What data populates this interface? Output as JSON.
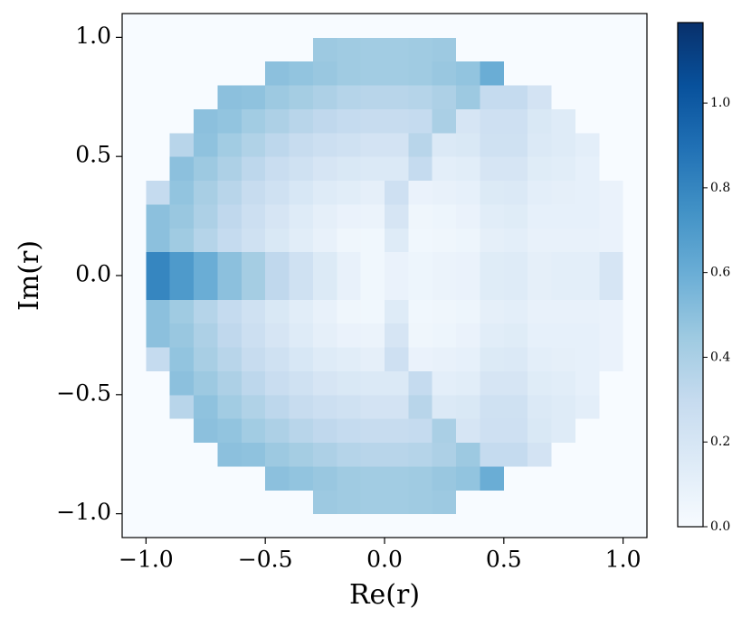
{
  "chart_data": {
    "type": "heatmap",
    "x_label": "Re(r)",
    "y_label": "Im(r)",
    "xlim": [
      -1.1,
      1.1
    ],
    "ylim": [
      -1.1,
      1.1
    ],
    "xticks": [
      {
        "value": -1,
        "label": "−1.0"
      },
      {
        "value": -0.5,
        "label": "−0.5"
      },
      {
        "value": 0,
        "label": "0.0"
      },
      {
        "value": 0.5,
        "label": "0.5"
      },
      {
        "value": 1,
        "label": "1.0"
      }
    ],
    "yticks": [
      {
        "value": -1,
        "label": "−1.0"
      },
      {
        "value": -0.5,
        "label": "−0.5"
      },
      {
        "value": 0,
        "label": "0.0"
      },
      {
        "value": 0.5,
        "label": "0.5"
      },
      {
        "value": 1,
        "label": "1.0"
      }
    ],
    "clim": [
      0,
      1.19
    ],
    "cticks": [
      {
        "value": 0,
        "label": "0.0"
      },
      0.2,
      0.4,
      0.6,
      0.8,
      {
        "value": 1,
        "label": "1.0"
      }
    ],
    "colormap": [
      "#f7fbff",
      "#deebf7",
      "#c6dbef",
      "#9ecae1",
      "#6baed6",
      "#4292c6",
      "#2171b5",
      "#08519c",
      "#08306b"
    ],
    "xbins": [
      -1.1,
      -1.0,
      -0.9,
      -0.8,
      -0.7,
      -0.6,
      -0.5,
      -0.4,
      -0.3,
      -0.2,
      -0.1,
      0,
      0.1,
      0.2,
      0.3,
      0.4,
      0.5,
      0.6,
      0.7,
      0.8,
      0.9,
      1.0,
      1.1
    ],
    "ybins": [
      -1.1,
      -1.0,
      -0.9,
      -0.8,
      -0.7,
      -0.6,
      -0.5,
      -0.4,
      -0.3,
      -0.2,
      -0.1,
      0,
      0.1,
      0.2,
      0.3,
      0.4,
      0.5,
      0.6,
      0.7,
      0.8,
      0.9,
      1.0,
      1.1
    ],
    "z": [
      [
        0,
        0,
        0,
        0,
        0,
        0,
        0,
        0,
        0,
        0,
        0,
        0,
        0,
        0,
        0,
        0,
        0,
        0,
        0,
        0,
        0,
        0
      ],
      [
        0,
        0,
        0,
        0,
        0,
        0,
        0,
        0,
        0.45,
        0.44,
        0.43,
        0.43,
        0.44,
        0.45,
        0,
        0,
        0,
        0,
        0,
        0,
        0,
        0
      ],
      [
        0,
        0,
        0,
        0,
        0,
        0,
        0.5,
        0.48,
        0.46,
        0.44,
        0.43,
        0.43,
        0.44,
        0.46,
        0.48,
        0.6,
        0,
        0,
        0,
        0,
        0,
        0
      ],
      [
        0,
        0,
        0,
        0,
        0.5,
        0.49,
        0.45,
        0.42,
        0.39,
        0.36,
        0.35,
        0.35,
        0.36,
        0.39,
        0.45,
        0.3,
        0.3,
        0.22,
        0,
        0,
        0,
        0
      ],
      [
        0,
        0,
        0,
        0.5,
        0.48,
        0.43,
        0.39,
        0.35,
        0.32,
        0.3,
        0.29,
        0.29,
        0.3,
        0.4,
        0.2,
        0.25,
        0.25,
        0.18,
        0.15,
        0,
        0,
        0
      ],
      [
        0,
        0,
        0.35,
        0.49,
        0.43,
        0.38,
        0.33,
        0.29,
        0.26,
        0.24,
        0.22,
        0.22,
        0.35,
        0.17,
        0.18,
        0.24,
        0.24,
        0.17,
        0.15,
        0.12,
        0,
        0
      ],
      [
        0,
        0,
        0.5,
        0.45,
        0.39,
        0.33,
        0.28,
        0.24,
        0.2,
        0.18,
        0.17,
        0.17,
        0.3,
        0.12,
        0.13,
        0.2,
        0.2,
        0.14,
        0.13,
        0.1,
        0,
        0
      ],
      [
        0,
        0.3,
        0.48,
        0.41,
        0.35,
        0.29,
        0.24,
        0.19,
        0.15,
        0.13,
        0.11,
        0.25,
        0.08,
        0.09,
        0.1,
        0.16,
        0.17,
        0.12,
        0.11,
        0.1,
        0.08,
        0
      ],
      [
        0,
        0.5,
        0.46,
        0.39,
        0.32,
        0.26,
        0.2,
        0.15,
        0.11,
        0.08,
        0.07,
        0.2,
        0.05,
        0.06,
        0.08,
        0.13,
        0.14,
        0.1,
        0.1,
        0.1,
        0.08,
        0
      ],
      [
        0,
        0.5,
        0.44,
        0.36,
        0.3,
        0.24,
        0.18,
        0.13,
        0.09,
        0.05,
        0.04,
        0.15,
        0.04,
        0.05,
        0.06,
        0.11,
        0.12,
        0.09,
        0.09,
        0.09,
        0.08,
        0
      ],
      [
        0,
        0.8,
        0.7,
        0.6,
        0.5,
        0.42,
        0.32,
        0.24,
        0.16,
        0.09,
        0.04,
        0.08,
        0.06,
        0.07,
        0.08,
        0.14,
        0.15,
        0.11,
        0.12,
        0.12,
        0.2,
        0
      ],
      [
        0,
        0.8,
        0.7,
        0.6,
        0.5,
        0.42,
        0.32,
        0.24,
        0.16,
        0.09,
        0.04,
        0.08,
        0.06,
        0.07,
        0.08,
        0.14,
        0.15,
        0.11,
        0.12,
        0.12,
        0.2,
        0
      ],
      [
        0,
        0.5,
        0.44,
        0.36,
        0.3,
        0.24,
        0.18,
        0.13,
        0.09,
        0.05,
        0.04,
        0.15,
        0.04,
        0.05,
        0.06,
        0.11,
        0.12,
        0.09,
        0.09,
        0.09,
        0.08,
        0
      ],
      [
        0,
        0.5,
        0.46,
        0.39,
        0.32,
        0.26,
        0.2,
        0.15,
        0.11,
        0.08,
        0.07,
        0.2,
        0.05,
        0.06,
        0.08,
        0.13,
        0.14,
        0.1,
        0.1,
        0.1,
        0.08,
        0
      ],
      [
        0,
        0.3,
        0.48,
        0.41,
        0.35,
        0.29,
        0.24,
        0.19,
        0.15,
        0.13,
        0.11,
        0.25,
        0.08,
        0.09,
        0.1,
        0.16,
        0.17,
        0.12,
        0.11,
        0.1,
        0.08,
        0
      ],
      [
        0,
        0,
        0.5,
        0.45,
        0.39,
        0.33,
        0.28,
        0.24,
        0.2,
        0.18,
        0.17,
        0.17,
        0.3,
        0.12,
        0.13,
        0.2,
        0.2,
        0.14,
        0.13,
        0.1,
        0,
        0
      ],
      [
        0,
        0,
        0.35,
        0.49,
        0.43,
        0.38,
        0.33,
        0.29,
        0.26,
        0.24,
        0.22,
        0.22,
        0.35,
        0.17,
        0.18,
        0.24,
        0.24,
        0.17,
        0.15,
        0.12,
        0,
        0
      ],
      [
        0,
        0,
        0,
        0.5,
        0.48,
        0.43,
        0.39,
        0.35,
        0.32,
        0.3,
        0.29,
        0.29,
        0.3,
        0.4,
        0.2,
        0.25,
        0.25,
        0.18,
        0.15,
        0,
        0,
        0
      ],
      [
        0,
        0,
        0,
        0,
        0.5,
        0.49,
        0.45,
        0.42,
        0.39,
        0.36,
        0.35,
        0.35,
        0.36,
        0.39,
        0.45,
        0.3,
        0.3,
        0.22,
        0,
        0,
        0,
        0
      ],
      [
        0,
        0,
        0,
        0,
        0,
        0,
        0.5,
        0.48,
        0.46,
        0.44,
        0.43,
        0.43,
        0.44,
        0.46,
        0.48,
        0.6,
        0,
        0,
        0,
        0,
        0,
        0
      ],
      [
        0,
        0,
        0,
        0,
        0,
        0,
        0,
        0,
        0.45,
        0.44,
        0.43,
        0.43,
        0.44,
        0.45,
        0,
        0,
        0,
        0,
        0,
        0,
        0,
        0
      ],
      [
        0,
        0,
        0,
        0,
        0,
        0,
        0,
        0,
        0,
        0,
        0,
        0,
        0,
        0,
        0,
        0,
        0,
        0,
        0,
        0,
        0,
        0
      ]
    ]
  }
}
